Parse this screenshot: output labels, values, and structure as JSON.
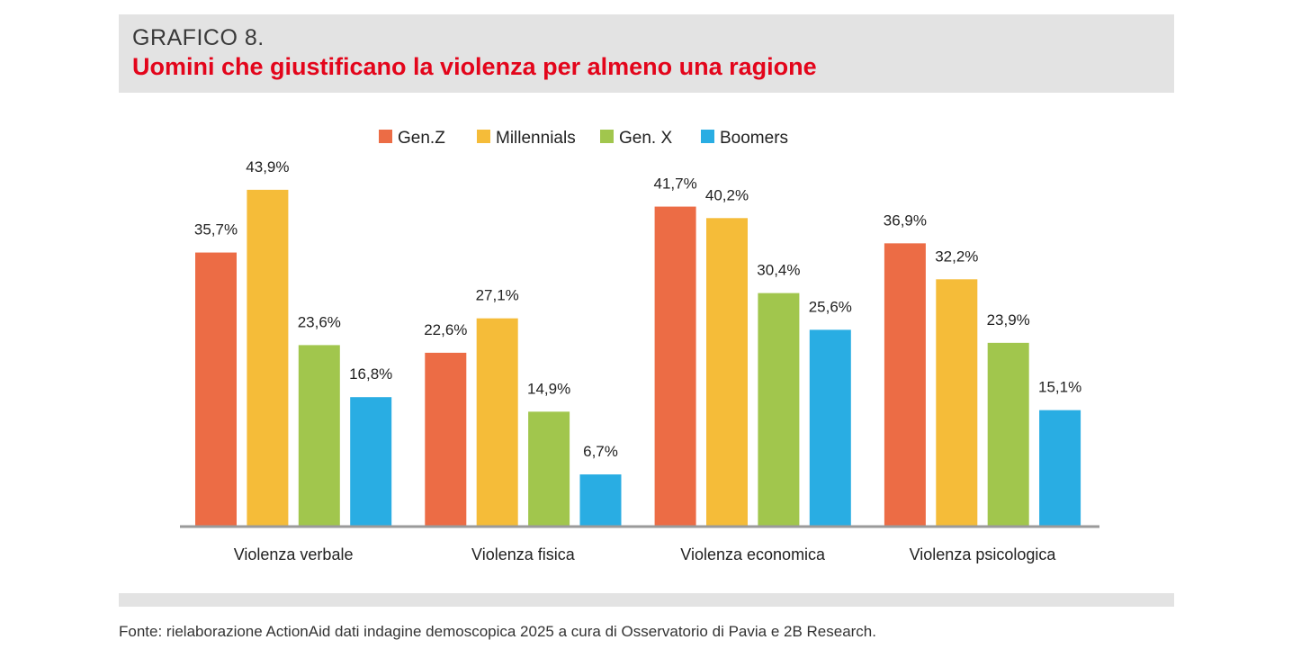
{
  "header": {
    "label": "GRAFICO 8.",
    "title": "Uomini che giustificano la violenza per almeno una ragione"
  },
  "source": "Fonte: rielaborazione ActionAid dati indagine demoscopica 2025 a cura di Osservatorio di Pavia e 2B Research.",
  "chart_data": {
    "type": "bar",
    "title": "Uomini che giustificano la violenza per almeno una ragione",
    "xlabel": "",
    "ylabel": "",
    "ylim": [
      0,
      50
    ],
    "grid": false,
    "legend_position": "top-center",
    "categories": [
      "Violenza verbale",
      "Violenza fisica",
      "Violenza economica",
      "Violenza psicologica"
    ],
    "series": [
      {
        "name": "Gen.Z",
        "color": "#ec6c45",
        "values": [
          35.7,
          22.6,
          41.7,
          36.9
        ],
        "labels": [
          "35,7%",
          "22,6%",
          "41,7%",
          "36,9%"
        ]
      },
      {
        "name": "Millennials",
        "color": "#f5bc39",
        "values": [
          43.9,
          27.1,
          40.2,
          32.2
        ],
        "labels": [
          "43,9%",
          "27,1%",
          "40,2%",
          "32,2%"
        ]
      },
      {
        "name": "Gen. X",
        "color": "#a1c64d",
        "values": [
          23.6,
          14.9,
          30.4,
          23.9
        ],
        "labels": [
          "23,6%",
          "14,9%",
          "30,4%",
          "23,9%"
        ]
      },
      {
        "name": "Boomers",
        "color": "#29ade3",
        "values": [
          16.8,
          6.7,
          25.6,
          15.1
        ],
        "labels": [
          "16,8%",
          "6,7%",
          "25,6%",
          "15,1%"
        ]
      }
    ]
  }
}
